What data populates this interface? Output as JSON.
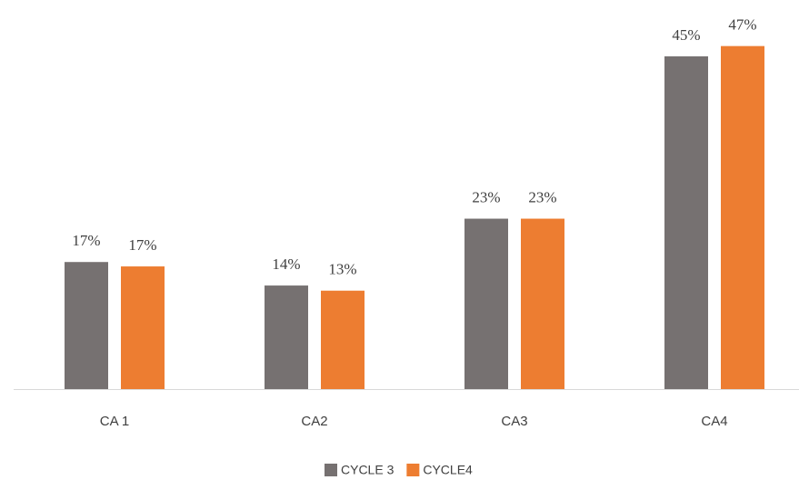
{
  "chart_data": {
    "type": "bar",
    "categories": [
      "CA 1",
      "CA2",
      "CA3",
      "CA4"
    ],
    "series": [
      {
        "name": "CYCLE 3",
        "color": "#767171",
        "values": [
          17.3,
          14.1,
          23.2,
          45.3
        ],
        "value_labels": [
          "17%",
          "14%",
          "23%",
          "45%"
        ]
      },
      {
        "name": "CYCLE4",
        "color": "#ed7d31",
        "values": [
          16.7,
          13.4,
          23.2,
          46.7
        ],
        "value_labels": [
          "17%",
          "13%",
          "23%",
          "47%"
        ]
      }
    ],
    "ylim": [
      0,
      50
    ]
  }
}
